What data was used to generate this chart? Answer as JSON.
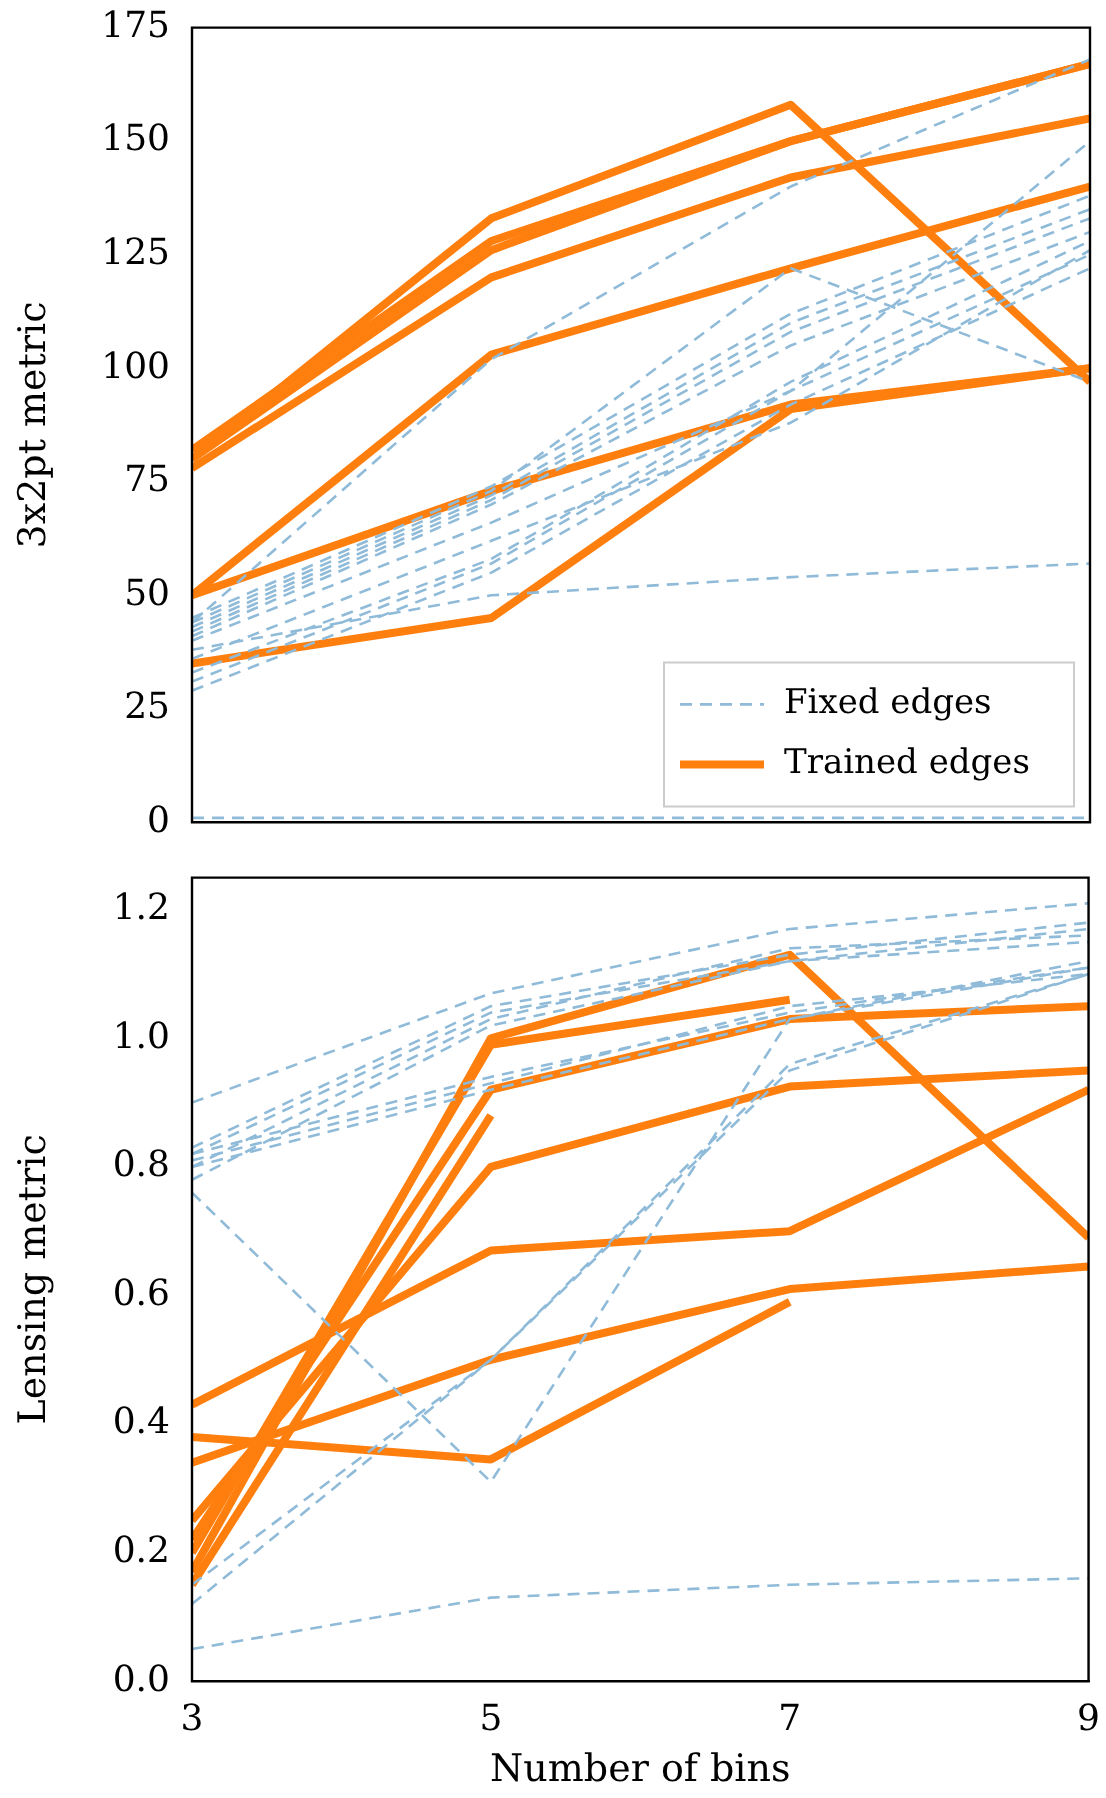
{
  "chart_data": [
    {
      "type": "line",
      "ylabel": "3x2pt metric",
      "x": [
        3,
        5,
        7,
        9
      ],
      "xlim": [
        3,
        9
      ],
      "xticks": [
        3,
        5,
        7,
        9
      ],
      "ylim": [
        0,
        175
      ],
      "yticks": [
        0,
        25,
        50,
        75,
        100,
        125,
        150,
        175
      ],
      "tick_labels": "y",
      "legend": "bottom right",
      "grid": false,
      "marker": "none",
      "series": [
        {
          "name": "Fixed edges",
          "color": "#8fbbd9",
          "line_style": "dashed",
          "values": [
            1,
            1,
            1,
            1
          ]
        },
        {
          "color": "#8fbbd9",
          "line_style": "dashed",
          "values": [
            38,
            50,
            54,
            57
          ]
        },
        {
          "color": "#8fbbd9",
          "line_style": "dashed",
          "values": [
            44,
            102,
            140,
            168
          ]
        },
        {
          "color": "#8fbbd9",
          "line_style": "dashed",
          "values": [
            44,
            73,
            122,
            97
          ]
        },
        {
          "color": "#8fbbd9",
          "line_style": "dashed",
          "values": [
            45,
            74,
            112,
            138
          ]
        },
        {
          "color": "#8fbbd9",
          "line_style": "dashed",
          "values": [
            43,
            72,
            110,
            135
          ]
        },
        {
          "color": "#8fbbd9",
          "line_style": "dashed",
          "values": [
            42,
            71,
            108,
            133
          ]
        },
        {
          "color": "#8fbbd9",
          "line_style": "dashed",
          "values": [
            41,
            70,
            105,
            130
          ]
        },
        {
          "color": "#8fbbd9",
          "line_style": "dashed",
          "values": [
            40,
            66,
            95,
            150
          ]
        },
        {
          "color": "#8fbbd9",
          "line_style": "dashed",
          "values": [
            33,
            58,
            97,
            128
          ]
        },
        {
          "color": "#8fbbd9",
          "line_style": "dashed",
          "values": [
            31,
            57,
            95,
            125
          ]
        },
        {
          "color": "#8fbbd9",
          "line_style": "dashed",
          "values": [
            29,
            55,
            92,
            122
          ]
        },
        {
          "color": "#8fbbd9",
          "line_style": "dashed",
          "values": [
            36,
            62,
            88,
            126
          ]
        },
        {
          "name": "Trained edges",
          "color": "#ff7f0e",
          "line_style": "solid",
          "values": [
            80,
            133,
            158,
            97
          ]
        },
        {
          "color": "#ff7f0e",
          "line_style": "solid",
          "values": [
            82,
            128,
            150,
            167
          ]
        },
        {
          "color": "#ff7f0e",
          "line_style": "solid",
          "values": [
            80,
            126,
            150,
            167
          ]
        },
        {
          "color": "#ff7f0e",
          "line_style": "solid",
          "values": [
            78,
            120,
            142,
            155
          ]
        },
        {
          "color": "#ff7f0e",
          "line_style": "solid",
          "values": [
            50,
            103,
            122,
            140
          ]
        },
        {
          "color": "#ff7f0e",
          "line_style": "solid",
          "values": [
            50,
            73,
            92,
            100
          ]
        },
        {
          "color": "#ff7f0e",
          "line_style": "solid",
          "values": [
            35,
            45,
            91,
            100
          ]
        }
      ]
    },
    {
      "type": "line",
      "xlabel": "Number of bins",
      "ylabel": "Lensing metric",
      "x": [
        3,
        5,
        7,
        9
      ],
      "xlim": [
        3,
        9
      ],
      "xticks": [
        3,
        5,
        7,
        9
      ],
      "ylim": [
        0,
        1.25
      ],
      "yticks": [
        {
          "value": 0,
          "label": "0.0"
        },
        0.2,
        0.4,
        0.6,
        0.8,
        {
          "value": 1,
          "label": "1.0"
        },
        1.2
      ],
      "legend": false,
      "grid": false,
      "marker": "none",
      "series": [
        {
          "color": "#8fbbd9",
          "line_style": "dashed",
          "values": [
            0.05,
            0.13,
            0.15,
            0.16
          ]
        },
        {
          "color": "#8fbbd9",
          "line_style": "dashed",
          "values": [
            0.12,
            0.5,
            0.95,
            1.1
          ]
        },
        {
          "color": "#8fbbd9",
          "line_style": "dashed",
          "values": [
            0.76,
            0.31,
            1.03,
            1.11
          ]
        },
        {
          "color": "#8fbbd9",
          "line_style": "dashed",
          "values": [
            0.9,
            1.07,
            1.17,
            1.21
          ]
        },
        {
          "color": "#8fbbd9",
          "line_style": "dashed",
          "values": [
            0.83,
            1.05,
            1.13,
            1.18
          ]
        },
        {
          "color": "#8fbbd9",
          "line_style": "dashed",
          "values": [
            0.82,
            1.04,
            1.12,
            1.17
          ]
        },
        {
          "color": "#8fbbd9",
          "line_style": "dashed",
          "values": [
            0.8,
            1.03,
            1.14,
            1.16
          ]
        },
        {
          "color": "#8fbbd9",
          "line_style": "dashed",
          "values": [
            0.78,
            1.02,
            1.12,
            1.15
          ]
        },
        {
          "color": "#8fbbd9",
          "line_style": "dashed",
          "values": [
            0.82,
            0.94,
            1.04,
            1.11
          ]
        },
        {
          "color": "#8fbbd9",
          "line_style": "dashed",
          "values": [
            0.81,
            0.93,
            1.05,
            1.1
          ]
        },
        {
          "color": "#8fbbd9",
          "line_style": "dashed",
          "values": [
            0.8,
            0.92,
            1.03,
            1.12
          ]
        },
        {
          "color": "#8fbbd9",
          "line_style": "dashed",
          "values": [
            0.15,
            0.5,
            0.96,
            1.1
          ]
        },
        {
          "color": "#ff7f0e",
          "line_style": "solid",
          "values": [
            0.17,
            1.0,
            1.13,
            0.69
          ]
        },
        {
          "color": "#ff7f0e",
          "line_style": "solid",
          "values": [
            0.2,
            0.99,
            1.06,
            null
          ]
        },
        {
          "color": "#ff7f0e",
          "line_style": "solid",
          "values": [
            0.22,
            0.92,
            1.03,
            1.05
          ]
        },
        {
          "color": "#ff7f0e",
          "line_style": "solid",
          "values": [
            0.15,
            0.88,
            null,
            null
          ]
        },
        {
          "color": "#ff7f0e",
          "line_style": "solid",
          "values": [
            0.25,
            0.8,
            0.925,
            0.95
          ]
        },
        {
          "color": "#ff7f0e",
          "line_style": "solid",
          "values": [
            0.43,
            0.67,
            0.7,
            0.92
          ]
        },
        {
          "color": "#ff7f0e",
          "line_style": "solid",
          "values": [
            0.34,
            0.5,
            0.61,
            0.645
          ]
        },
        {
          "color": "#ff7f0e",
          "line_style": "solid",
          "values": [
            0.38,
            0.345,
            0.59,
            null
          ]
        }
      ]
    }
  ]
}
